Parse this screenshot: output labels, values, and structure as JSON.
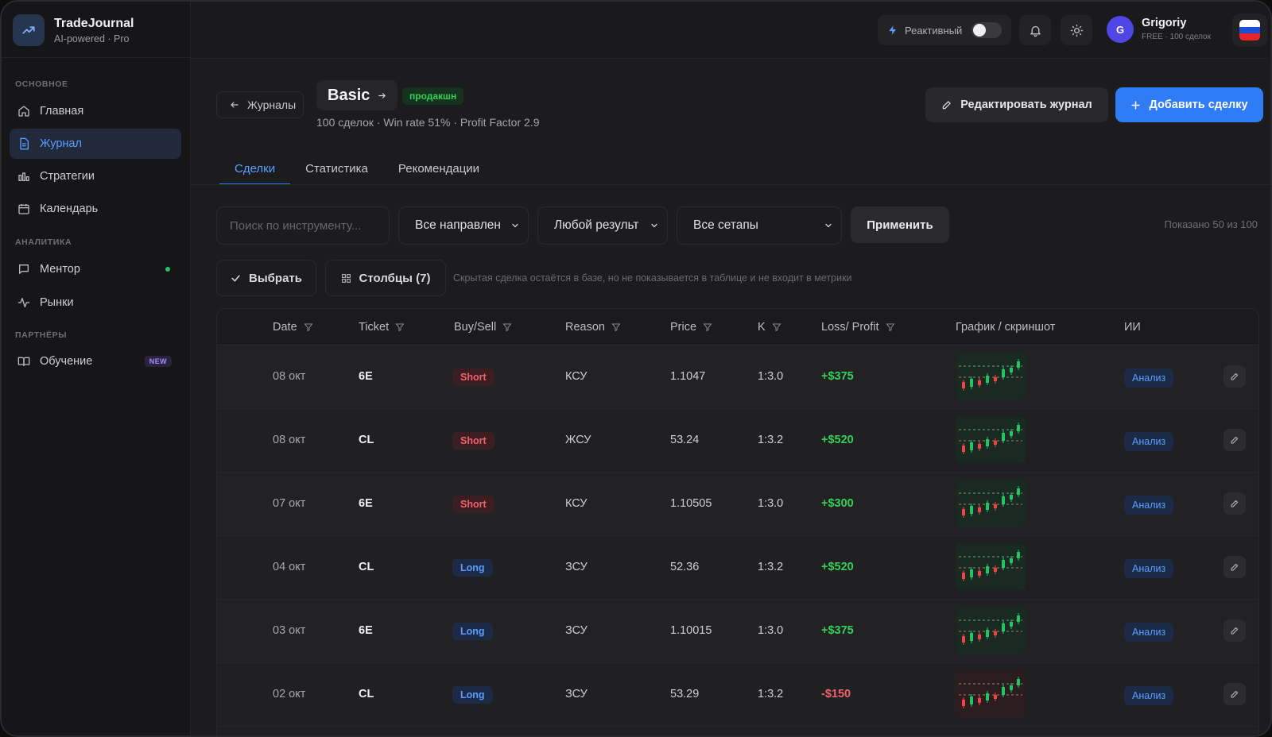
{
  "brand": {
    "title": "TradeJournal",
    "subtitle": "AI-powered · Pro"
  },
  "sidebar": {
    "sections": [
      {
        "label": "ОСНОВНОЕ"
      },
      {
        "label": "АНАЛИТИКА"
      },
      {
        "label": "ПАРТНЁРЫ"
      }
    ],
    "items": [
      {
        "label": "Главная",
        "icon": "home-icon"
      },
      {
        "label": "Журнал",
        "icon": "document-icon",
        "active": true
      },
      {
        "label": "Стратегии",
        "icon": "strategy-icon"
      },
      {
        "label": "Календарь",
        "icon": "calendar-icon"
      },
      {
        "label": "Ментор",
        "icon": "chat-icon",
        "status": "online"
      },
      {
        "label": "Рынки",
        "icon": "pulse-icon"
      },
      {
        "label": "Обучение",
        "icon": "book-icon",
        "badge": "NEW"
      }
    ]
  },
  "topbar": {
    "reactive_label": "Реактивный",
    "reactive_on": false,
    "user": {
      "initial": "G",
      "name": "Grigoriy",
      "plan": "FREE · 100 сделок"
    }
  },
  "header": {
    "back_label": "Журналы",
    "journal_name": "Basic",
    "status_badge": "продакшн",
    "meta": "100 сделок · Win rate 51% · Profit Factor 2.9",
    "edit_label": "Редактировать журнал",
    "add_label": "Добавить сделку"
  },
  "tabs": [
    {
      "label": "Сделки",
      "active": true
    },
    {
      "label": "Статистика"
    },
    {
      "label": "Рекомендации"
    }
  ],
  "filters": {
    "search_placeholder": "Поиск по инструменту...",
    "direction": "Все направлен",
    "result": "Любой результ",
    "setups": "Все сетапы",
    "apply_label": "Применить",
    "shown_text": "Показано 50 из 100",
    "select_label": "Выбрать",
    "columns_label": "Столбцы (7)",
    "hint": "Скрытая сделка остаётся в базе, но не показывается в таблице и не входит в метрики"
  },
  "table": {
    "headers": {
      "date": "Date",
      "ticket": "Ticket",
      "buysell": "Buy/Sell",
      "reason": "Reason",
      "price": "Price",
      "k": "K",
      "pnl": "Loss/ Profit",
      "chart": "График / скриншот",
      "ai": "ИИ"
    },
    "ai_label": "Анализ",
    "rows": [
      {
        "date": "08 окт",
        "ticket": "6E",
        "dir": "Short",
        "reason": "КСУ",
        "price": "1.1047",
        "k": "1:3.0",
        "pnl": "+$375",
        "positive": true
      },
      {
        "date": "08 окт",
        "ticket": "CL",
        "dir": "Short",
        "reason": "ЖСУ",
        "price": "53.24",
        "k": "1:3.2",
        "pnl": "+$520",
        "positive": true
      },
      {
        "date": "07 окт",
        "ticket": "6E",
        "dir": "Short",
        "reason": "КСУ",
        "price": "1.10505",
        "k": "1:3.0",
        "pnl": "+$300",
        "positive": true
      },
      {
        "date": "04 окт",
        "ticket": "CL",
        "dir": "Long",
        "reason": "ЗСУ",
        "price": "52.36",
        "k": "1:3.2",
        "pnl": "+$520",
        "positive": true
      },
      {
        "date": "03 окт",
        "ticket": "6E",
        "dir": "Long",
        "reason": "ЗСУ",
        "price": "1.10015",
        "k": "1:3.0",
        "pnl": "+$375",
        "positive": true
      },
      {
        "date": "02 окт",
        "ticket": "CL",
        "dir": "Long",
        "reason": "ЗСУ",
        "price": "53.29",
        "k": "1:3.2",
        "pnl": "-$150",
        "positive": false
      }
    ]
  },
  "colors": {
    "accent": "#2f7cf6",
    "positive": "#34d058",
    "negative": "#f1636a",
    "flag_white": "#ffffff",
    "flag_blue": "#1c4fd8",
    "flag_red": "#e5252a"
  }
}
